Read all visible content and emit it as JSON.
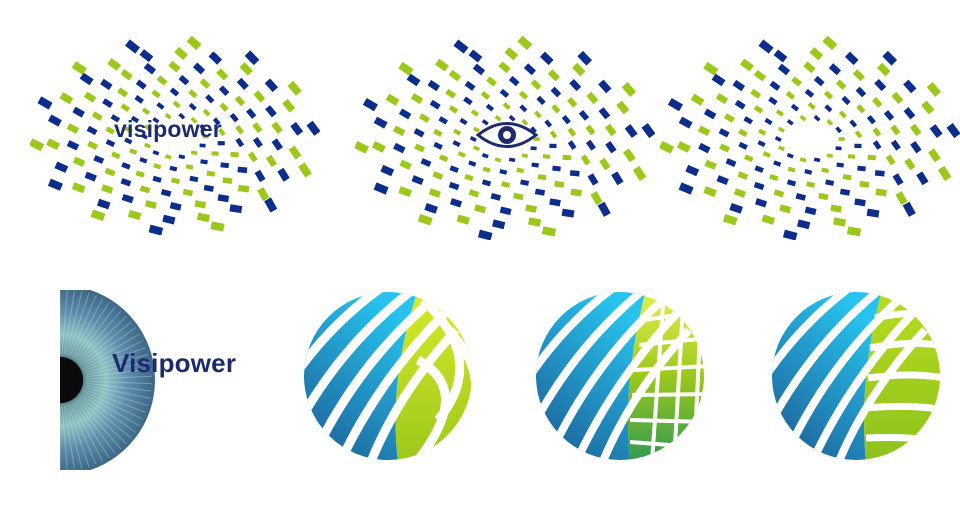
{
  "logos": {
    "burst_wordmark": "visipower",
    "iris_wordmark": "Visipower"
  },
  "icons": {
    "burst_1": "mosaic-burst-icon",
    "eye": "eye-icon",
    "iris": "iris-icon",
    "globe": "globe-icon"
  },
  "colors": {
    "navy": "#0c2d8c",
    "lime": "#9cc81c",
    "wordmark": "#1e2a6e",
    "stripe_light": "#27c3ee",
    "stripe_dark": "#1c5790",
    "green_light": "#d8ea2a",
    "green_dark": "#2f9a52",
    "iris_outer": "#3f6a8a",
    "iris_inner": "#8ec4c4"
  }
}
